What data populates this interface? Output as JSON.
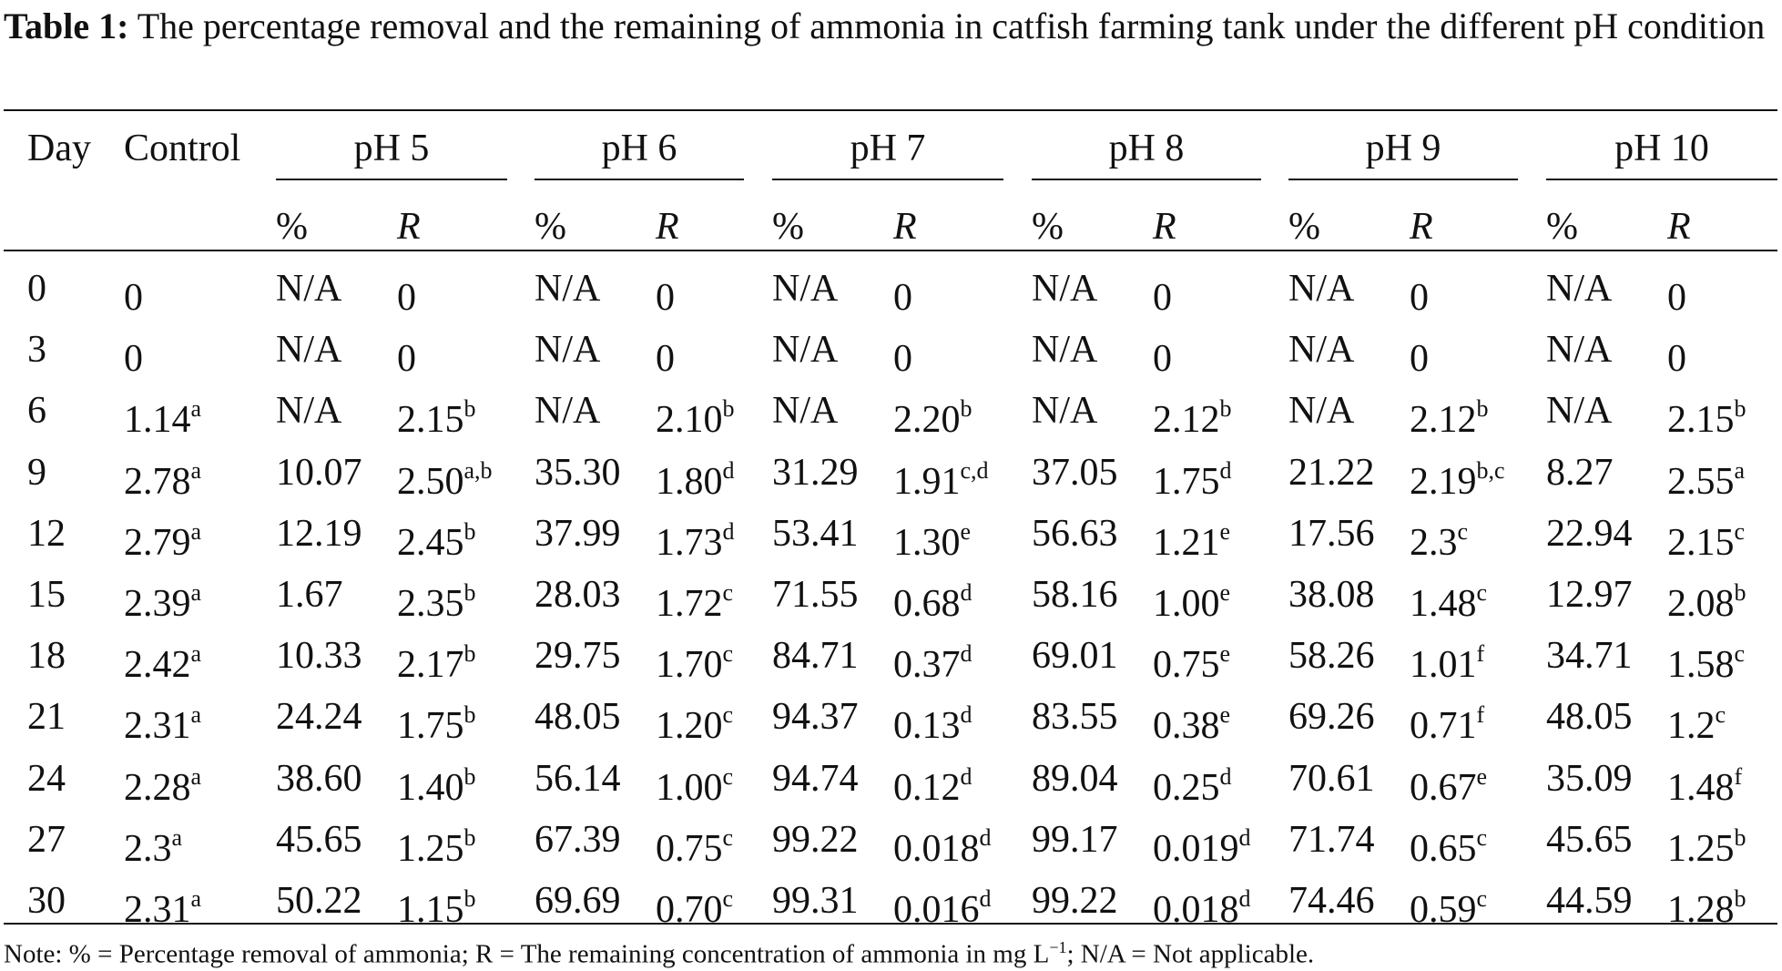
{
  "caption": {
    "label": "Table 1:",
    "text": "The percentage removal and the remaining of ammonia in catfish farming tank under the different pH condition"
  },
  "header": {
    "day": "Day",
    "control": "Control",
    "groups": [
      "pH 5",
      "pH 6",
      "pH 7",
      "pH 8",
      "pH 9",
      "pH 10"
    ],
    "pct": "%",
    "r": "R"
  },
  "rows": [
    {
      "day": "0",
      "control": {
        "v": "0",
        "s": ""
      },
      "cells": [
        {
          "p": "N/A",
          "r": "0",
          "s": ""
        },
        {
          "p": "N/A",
          "r": "0",
          "s": ""
        },
        {
          "p": "N/A",
          "r": "0",
          "s": ""
        },
        {
          "p": "N/A",
          "r": "0",
          "s": ""
        },
        {
          "p": "N/A",
          "r": "0",
          "s": ""
        },
        {
          "p": "N/A",
          "r": "0",
          "s": ""
        }
      ]
    },
    {
      "day": "3",
      "control": {
        "v": "0",
        "s": ""
      },
      "cells": [
        {
          "p": "N/A",
          "r": "0",
          "s": ""
        },
        {
          "p": "N/A",
          "r": "0",
          "s": ""
        },
        {
          "p": "N/A",
          "r": "0",
          "s": ""
        },
        {
          "p": "N/A",
          "r": "0",
          "s": ""
        },
        {
          "p": "N/A",
          "r": "0",
          "s": ""
        },
        {
          "p": "N/A",
          "r": "0",
          "s": ""
        }
      ]
    },
    {
      "day": "6",
      "control": {
        "v": "1.14",
        "s": "a"
      },
      "cells": [
        {
          "p": "N/A",
          "r": "2.15",
          "s": "b"
        },
        {
          "p": "N/A",
          "r": "2.10",
          "s": "b"
        },
        {
          "p": "N/A",
          "r": "2.20",
          "s": "b"
        },
        {
          "p": "N/A",
          "r": "2.12",
          "s": "b"
        },
        {
          "p": "N/A",
          "r": "2.12",
          "s": "b"
        },
        {
          "p": "N/A",
          "r": "2.15",
          "s": "b"
        }
      ]
    },
    {
      "day": "9",
      "control": {
        "v": "2.78",
        "s": "a"
      },
      "cells": [
        {
          "p": "10.07",
          "r": "2.50",
          "s": "a,b"
        },
        {
          "p": "35.30",
          "r": "1.80",
          "s": "d"
        },
        {
          "p": "31.29",
          "r": "1.91",
          "s": "c,d"
        },
        {
          "p": "37.05",
          "r": "1.75",
          "s": "d"
        },
        {
          "p": "21.22",
          "r": "2.19",
          "s": "b,c"
        },
        {
          "p": "8.27",
          "r": "2.55",
          "s": "a"
        }
      ]
    },
    {
      "day": "12",
      "control": {
        "v": "2.79",
        "s": "a"
      },
      "cells": [
        {
          "p": "12.19",
          "r": "2.45",
          "s": "b"
        },
        {
          "p": "37.99",
          "r": "1.73",
          "s": "d"
        },
        {
          "p": "53.41",
          "r": "1.30",
          "s": "e"
        },
        {
          "p": "56.63",
          "r": "1.21",
          "s": "e"
        },
        {
          "p": "17.56",
          "r": "2.3",
          "s": "c"
        },
        {
          "p": "22.94",
          "r": "2.15",
          "s": "c"
        }
      ]
    },
    {
      "day": "15",
      "control": {
        "v": "2.39",
        "s": "a"
      },
      "cells": [
        {
          "p": "1.67",
          "r": "2.35",
          "s": "b"
        },
        {
          "p": "28.03",
          "r": "1.72",
          "s": "c"
        },
        {
          "p": "71.55",
          "r": "0.68",
          "s": "d"
        },
        {
          "p": "58.16",
          "r": "1.00",
          "s": "e"
        },
        {
          "p": "38.08",
          "r": "1.48",
          "s": "c"
        },
        {
          "p": "12.97",
          "r": "2.08",
          "s": "b"
        }
      ]
    },
    {
      "day": "18",
      "control": {
        "v": "2.42",
        "s": "a"
      },
      "cells": [
        {
          "p": "10.33",
          "r": "2.17",
          "s": "b"
        },
        {
          "p": "29.75",
          "r": "1.70",
          "s": "c"
        },
        {
          "p": "84.71",
          "r": "0.37",
          "s": "d"
        },
        {
          "p": "69.01",
          "r": "0.75",
          "s": "e"
        },
        {
          "p": "58.26",
          "r": "1.01",
          "s": "f"
        },
        {
          "p": "34.71",
          "r": "1.58",
          "s": "c"
        }
      ]
    },
    {
      "day": "21",
      "control": {
        "v": "2.31",
        "s": "a"
      },
      "cells": [
        {
          "p": "24.24",
          "r": "1.75",
          "s": "b"
        },
        {
          "p": "48.05",
          "r": "1.20",
          "s": "c"
        },
        {
          "p": "94.37",
          "r": "0.13",
          "s": "d"
        },
        {
          "p": "83.55",
          "r": "0.38",
          "s": "e"
        },
        {
          "p": "69.26",
          "r": "0.71",
          "s": "f"
        },
        {
          "p": "48.05",
          "r": "1.2",
          "s": "c"
        }
      ]
    },
    {
      "day": "24",
      "control": {
        "v": "2.28",
        "s": "a"
      },
      "cells": [
        {
          "p": "38.60",
          "r": "1.40",
          "s": "b"
        },
        {
          "p": "56.14",
          "r": "1.00",
          "s": "c"
        },
        {
          "p": "94.74",
          "r": "0.12",
          "s": "d"
        },
        {
          "p": "89.04",
          "r": "0.25",
          "s": "d"
        },
        {
          "p": "70.61",
          "r": "0.67",
          "s": "e"
        },
        {
          "p": "35.09",
          "r": "1.48",
          "s": "f"
        }
      ]
    },
    {
      "day": "27",
      "control": {
        "v": "2.3",
        "s": "a"
      },
      "cells": [
        {
          "p": "45.65",
          "r": "1.25",
          "s": "b"
        },
        {
          "p": "67.39",
          "r": "0.75",
          "s": "c"
        },
        {
          "p": "99.22",
          "r": "0.018",
          "s": "d"
        },
        {
          "p": "99.17",
          "r": "0.019",
          "s": "d"
        },
        {
          "p": "71.74",
          "r": "0.65",
          "s": "c"
        },
        {
          "p": "45.65",
          "r": "1.25",
          "s": "b"
        }
      ]
    },
    {
      "day": "30",
      "control": {
        "v": "2.31",
        "s": "a"
      },
      "cells": [
        {
          "p": "50.22",
          "r": "1.15",
          "s": "b"
        },
        {
          "p": "69.69",
          "r": "0.70",
          "s": "c"
        },
        {
          "p": "99.31",
          "r": "0.016",
          "s": "d"
        },
        {
          "p": "99.22",
          "r": "0.018",
          "s": "d"
        },
        {
          "p": "74.46",
          "r": "0.59",
          "s": "c"
        },
        {
          "p": "44.59",
          "r": "1.28",
          "s": "b"
        }
      ]
    }
  ],
  "note": {
    "before": "Note: % = Percentage removal of ammonia; R = The remaining concentration of ammonia in mg L",
    "sup": "−1",
    "after": "; N/A = Not applicable."
  }
}
